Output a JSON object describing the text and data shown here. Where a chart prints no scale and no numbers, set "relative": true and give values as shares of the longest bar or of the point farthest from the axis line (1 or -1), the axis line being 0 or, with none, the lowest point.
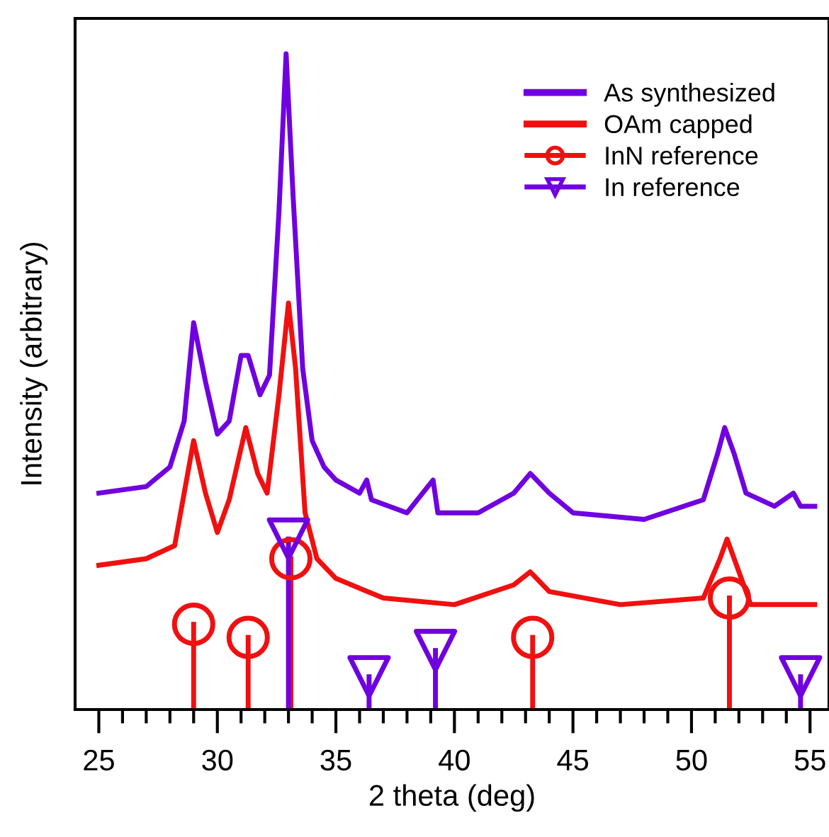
{
  "chart_data": {
    "type": "line",
    "relative": true,
    "xlabel": "2 theta (deg)",
    "ylabel": "Intensity (arbitrary)",
    "xlim": [
      24,
      55.8
    ],
    "xticks": [
      25,
      {
        "value": 26,
        "label": null
      },
      {
        "value": 27,
        "label": null
      },
      {
        "value": 28,
        "label": null
      },
      {
        "value": 29,
        "label": null
      },
      30,
      {
        "value": 31,
        "label": null
      },
      {
        "value": 32,
        "label": null
      },
      {
        "value": 33,
        "label": null
      },
      {
        "value": 34,
        "label": null
      },
      35,
      {
        "value": 36,
        "label": null
      },
      {
        "value": 37,
        "label": null
      },
      {
        "value": 38,
        "label": null
      },
      {
        "value": 39,
        "label": null
      },
      40,
      {
        "value": 41,
        "label": null
      },
      {
        "value": 42,
        "label": null
      },
      {
        "value": 43,
        "label": null
      },
      {
        "value": 44,
        "label": null
      },
      45,
      {
        "value": 46,
        "label": null
      },
      {
        "value": 47,
        "label": null
      },
      {
        "value": 48,
        "label": null
      },
      {
        "value": 49,
        "label": null
      },
      50,
      {
        "value": 51,
        "label": null
      },
      {
        "value": 52,
        "label": null
      },
      {
        "value": 53,
        "label": null
      },
      {
        "value": 54,
        "label": null
      },
      55
    ],
    "tick_labels": "x",
    "grid": false,
    "legend": "top right",
    "series": [
      {
        "name": "As synthesized",
        "color": "#7000e0",
        "x": [
          25,
          27,
          28,
          28.6,
          29.0,
          29.5,
          30.0,
          30.5,
          31.0,
          31.3,
          31.8,
          32.2,
          32.6,
          32.9,
          33.2,
          33.6,
          34.0,
          34.5,
          35,
          36,
          36.3,
          36.5,
          38,
          39.1,
          39.3,
          41,
          42.5,
          43.2,
          44,
          45,
          48,
          50.5,
          51.1,
          51.4,
          51.8,
          52.3,
          53.5,
          54.3,
          54.6,
          55.2
        ],
        "values": [
          0.33,
          0.34,
          0.37,
          0.44,
          0.59,
          0.5,
          0.42,
          0.44,
          0.54,
          0.54,
          0.48,
          0.51,
          0.76,
          1.0,
          0.78,
          0.52,
          0.41,
          0.37,
          0.35,
          0.33,
          0.35,
          0.32,
          0.3,
          0.35,
          0.3,
          0.3,
          0.33,
          0.36,
          0.33,
          0.3,
          0.29,
          0.32,
          0.39,
          0.43,
          0.39,
          0.33,
          0.31,
          0.33,
          0.31,
          0.31
        ]
      },
      {
        "name": "OAm capped",
        "color": "#f01010",
        "x": [
          25,
          27,
          28.2,
          28.6,
          29.0,
          29.5,
          30.0,
          30.5,
          31.2,
          31.7,
          32.1,
          32.6,
          33.0,
          33.3,
          33.7,
          34.2,
          35,
          37,
          40,
          42.5,
          43.2,
          44,
          47,
          50.5,
          51.2,
          51.5,
          51.9,
          52.5,
          55.2
        ],
        "values": [
          0.22,
          0.23,
          0.25,
          0.33,
          0.41,
          0.33,
          0.27,
          0.32,
          0.43,
          0.36,
          0.33,
          0.48,
          0.62,
          0.52,
          0.3,
          0.23,
          0.2,
          0.17,
          0.16,
          0.19,
          0.21,
          0.18,
          0.16,
          0.17,
          0.23,
          0.26,
          0.22,
          0.16,
          0.16
        ]
      },
      {
        "name": "InN reference",
        "color": "#f01010",
        "type": "lollipop",
        "marker": "circle",
        "x": [
          29.0,
          31.3,
          33.1,
          43.3,
          51.6
        ],
        "values": [
          0.13,
          0.11,
          0.23,
          0.11,
          0.17
        ]
      },
      {
        "name": "In reference",
        "color": "#7000e0",
        "type": "lollipop",
        "marker": "triangle",
        "x": [
          33.0,
          36.4,
          39.2,
          54.6
        ],
        "values": [
          0.26,
          0.05,
          0.09,
          0.05
        ]
      }
    ]
  }
}
